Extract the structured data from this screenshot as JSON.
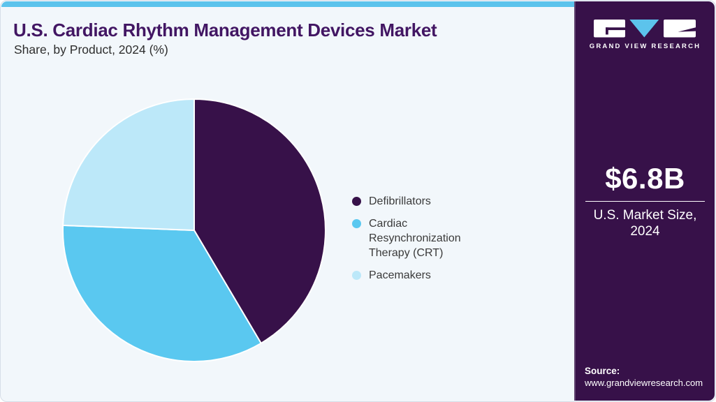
{
  "header": {
    "title": "U.S. Cardiac Rhythm Management Devices Market",
    "subtitle": "Share, by Product, 2024 (%)"
  },
  "chart_data": {
    "type": "pie",
    "title": "U.S. Cardiac Rhythm Management Devices Market Share, by Product, 2024 (%)",
    "slices": [
      {
        "label": "Defibrillators",
        "value": 41.5,
        "color": "#371149"
      },
      {
        "label": "Cardiac Resynchronization Therapy (CRT)",
        "value": 34.1,
        "color": "#5ac8f0"
      },
      {
        "label": "Pacemakers",
        "value": 24.4,
        "color": "#bce8f9"
      }
    ],
    "start_angle_deg": 0,
    "direction": "clockwise",
    "legend_position": "right",
    "data_labels": false
  },
  "sidebar": {
    "logo": {
      "brand": "GRAND VIEW RESEARCH"
    },
    "market_size": {
      "value": "$6.8B",
      "label_line1": "U.S. Market Size,",
      "label_line2": "2024"
    },
    "source": {
      "label": "Source:",
      "url": "www.grandviewresearch.com"
    }
  },
  "colors": {
    "accent_bar": "#5cc3ec",
    "sidebar_bg": "#371149",
    "title_text": "#421663",
    "card_bg": "#f2f7fb",
    "legend_text": "#3a3a3a",
    "logo_triangle": "#5cc3ec"
  }
}
